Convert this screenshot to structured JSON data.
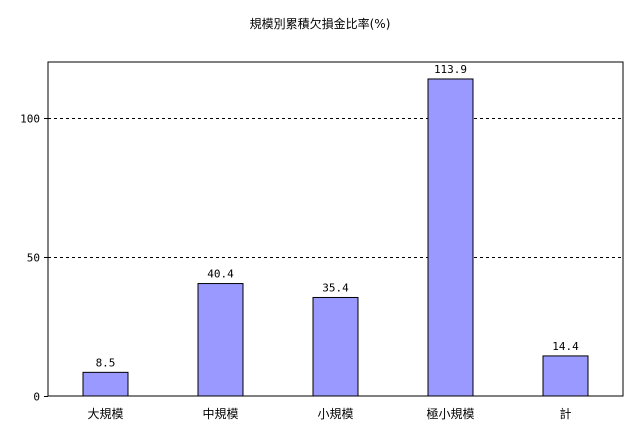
{
  "chart_data": {
    "type": "bar",
    "title": "規模別累積欠損金比率(%)",
    "categories": [
      "大規模",
      "中規模",
      "小規模",
      "極小規模",
      "計"
    ],
    "values": [
      8.5,
      40.4,
      35.4,
      113.9,
      14.4
    ],
    "value_labels": [
      "8.5",
      "40.4",
      "35.4",
      "113.9",
      "14.4"
    ],
    "ylim": [
      0,
      120
    ],
    "yticks": [
      0,
      50,
      100
    ],
    "ytick_labels": [
      "0",
      "50",
      "100"
    ],
    "grid": "horizontal-dashed",
    "legend": "none",
    "colors": {
      "bar_fill": "#9999ff",
      "bar_stroke": "#000000",
      "grid": "#000000",
      "axis": "#000000"
    }
  }
}
